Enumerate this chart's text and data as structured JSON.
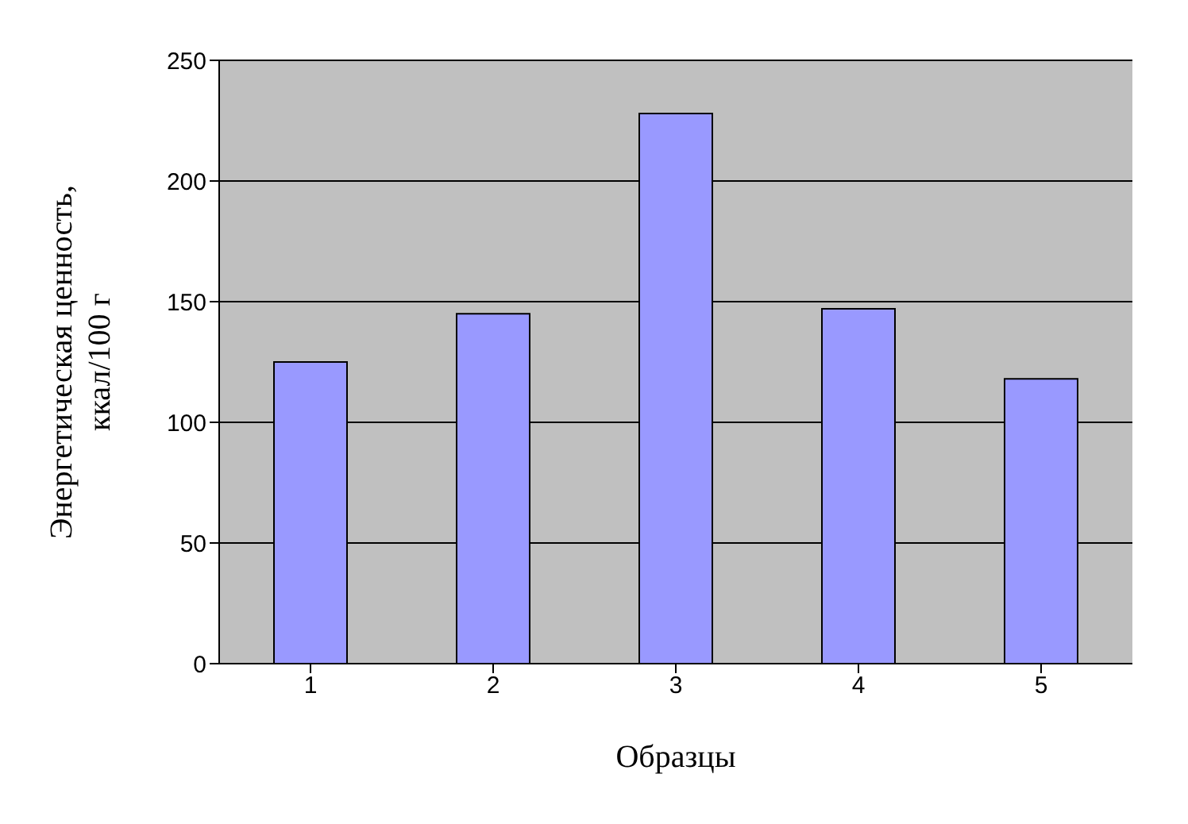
{
  "chart_data": {
    "type": "bar",
    "xlabel": "Образцы",
    "ylabel": "Энергетическая ценность, ккал/100 г",
    "categories": [
      "1",
      "2",
      "3",
      "4",
      "5"
    ],
    "values": [
      125,
      145,
      228,
      147,
      118
    ],
    "color": "#9999ff",
    "ylim": [
      0,
      250
    ],
    "yticks": [
      0,
      50,
      100,
      150,
      200,
      250
    ],
    "grid": "y"
  }
}
